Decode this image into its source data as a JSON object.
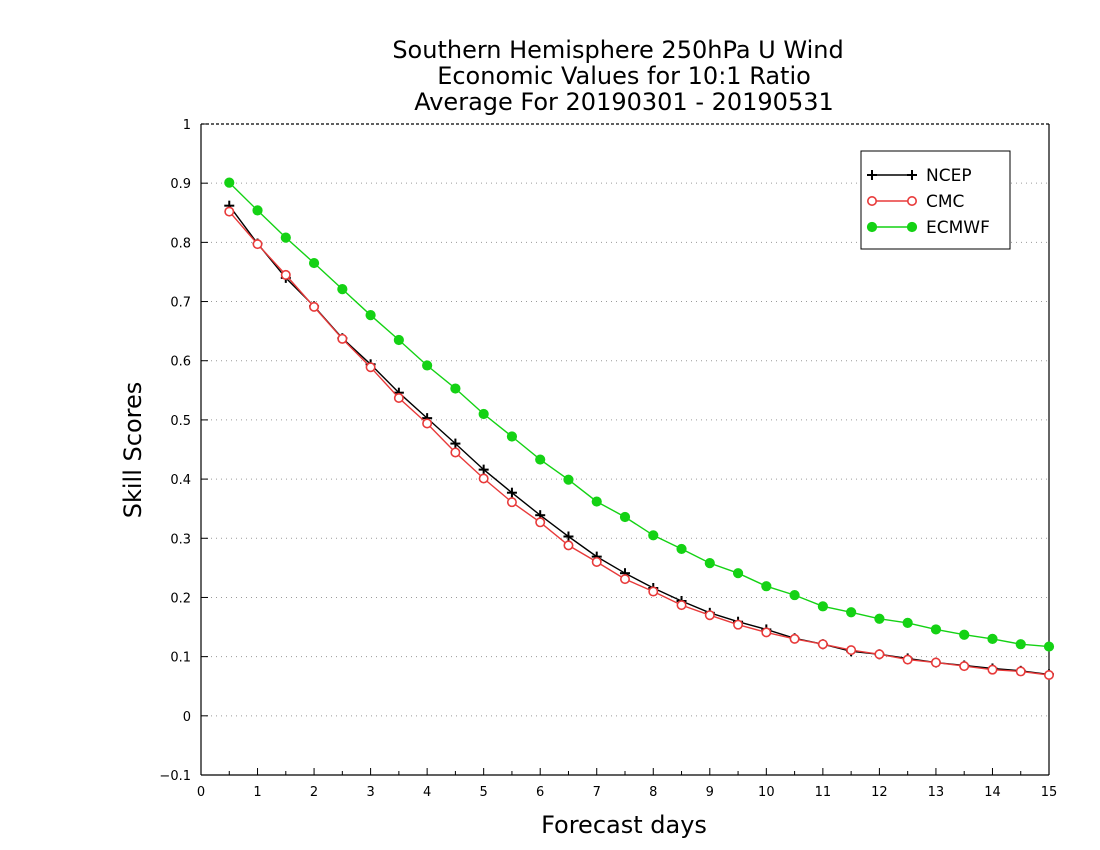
{
  "chart_data": {
    "type": "line",
    "title_lines": [
      "Southern Hemisphere 250hPa U Wind",
      "Economic Values for 10:1 Ratio",
      "Average For 20190301 - 20190531"
    ],
    "xlabel": "Forecast days",
    "ylabel": "Skill Scores",
    "xlim": [
      0,
      15
    ],
    "ylim": [
      -0.1,
      1
    ],
    "x_ticks": [
      "0",
      "1",
      "2",
      "3",
      "4",
      "5",
      "6",
      "7",
      "8",
      "9",
      "10",
      "11",
      "12",
      "13",
      "14",
      "15"
    ],
    "y_ticks": [
      "−0.1",
      "0",
      "0.1",
      "0.2",
      "0.3",
      "0.4",
      "0.5",
      "0.6",
      "0.7",
      "0.8",
      "0.9",
      "1"
    ],
    "grid": true,
    "legend_position": "top-right",
    "x": [
      0.5,
      1,
      1.5,
      2,
      2.5,
      3,
      3.5,
      4,
      4.5,
      5,
      5.5,
      6,
      6.5,
      7,
      7.5,
      8,
      8.5,
      9,
      9.5,
      10,
      10.5,
      11,
      11.5,
      12,
      12.5,
      13,
      13.5,
      14,
      14.5,
      15
    ],
    "series": [
      {
        "name": "NCEP",
        "color": "#000000",
        "marker": "plus",
        "values": [
          0.862,
          0.798,
          0.74,
          0.692,
          0.638,
          0.594,
          0.546,
          0.503,
          0.46,
          0.416,
          0.377,
          0.339,
          0.303,
          0.269,
          0.241,
          0.216,
          0.194,
          0.174,
          0.159,
          0.146,
          0.131,
          0.121,
          0.109,
          0.104,
          0.097,
          0.09,
          0.085,
          0.08,
          0.076,
          0.07
        ]
      },
      {
        "name": "CMC",
        "color": "#e83a3a",
        "marker": "open-circle",
        "values": [
          0.852,
          0.797,
          0.745,
          0.691,
          0.637,
          0.589,
          0.537,
          0.494,
          0.445,
          0.401,
          0.361,
          0.327,
          0.288,
          0.26,
          0.231,
          0.21,
          0.187,
          0.17,
          0.154,
          0.141,
          0.13,
          0.121,
          0.111,
          0.104,
          0.095,
          0.09,
          0.084,
          0.078,
          0.075,
          0.069
        ]
      },
      {
        "name": "ECMWF",
        "color": "#14d214",
        "marker": "filled-circle",
        "values": [
          0.901,
          0.854,
          0.808,
          0.765,
          0.721,
          0.677,
          0.635,
          0.592,
          0.553,
          0.51,
          0.472,
          0.433,
          0.399,
          0.362,
          0.336,
          0.305,
          0.282,
          0.258,
          0.241,
          0.219,
          0.204,
          0.185,
          0.175,
          0.164,
          0.157,
          0.146,
          0.137,
          0.13,
          0.121,
          0.117
        ]
      }
    ]
  }
}
